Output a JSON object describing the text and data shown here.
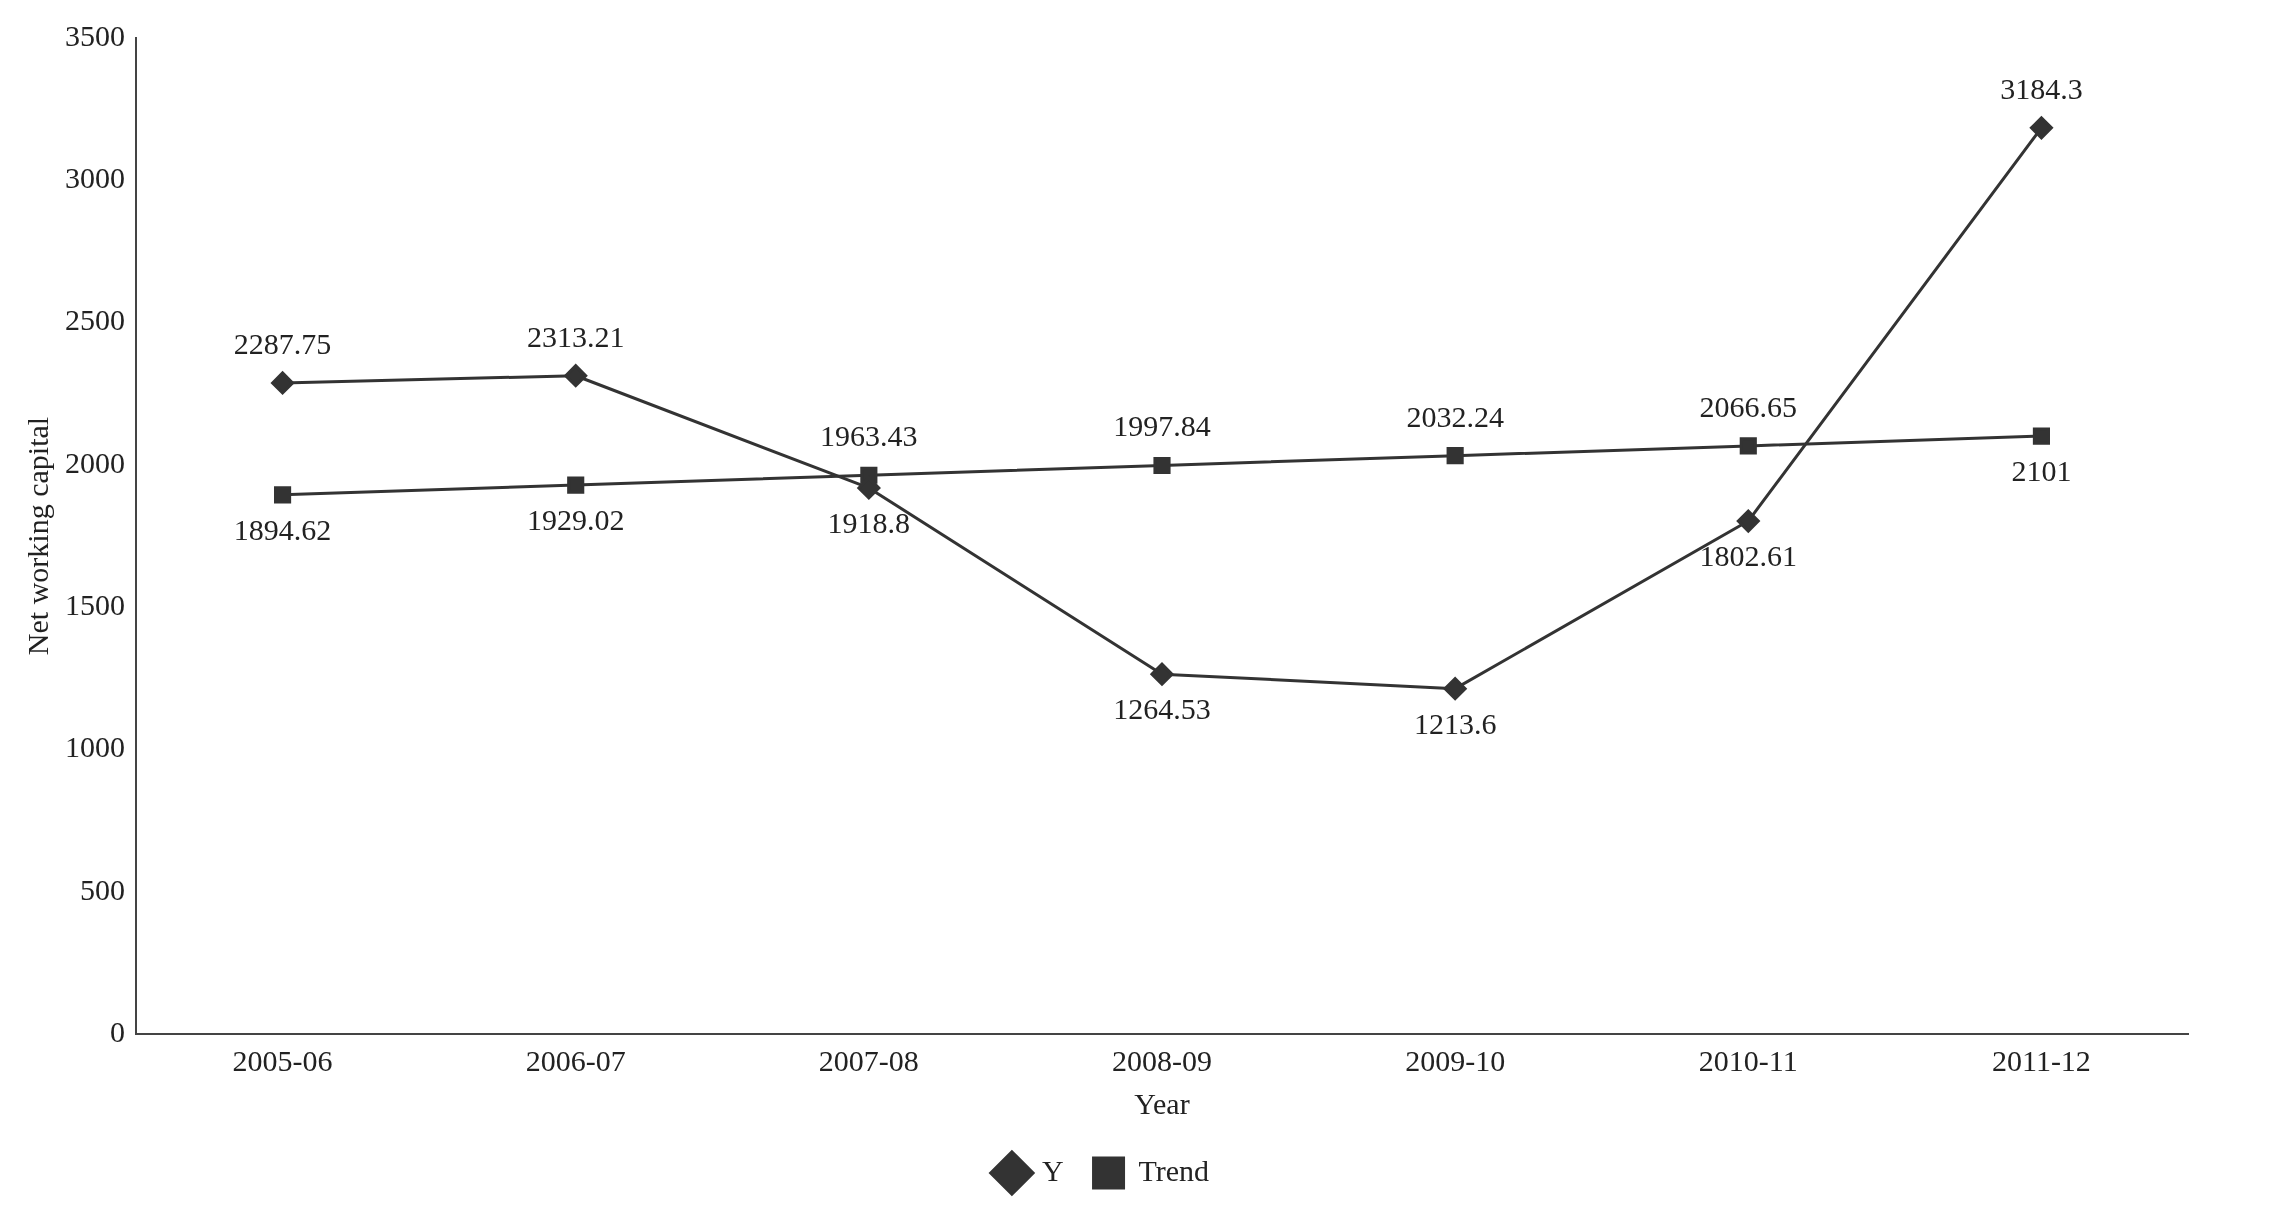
{
  "chart_data": {
    "type": "line",
    "xlabel": "Year",
    "ylabel": "Net working capital",
    "categories": [
      "2005-06",
      "2006-07",
      "2007-08",
      "2008-09",
      "2009-10",
      "2010-11",
      "2011-12"
    ],
    "series": [
      {
        "name": "Y",
        "color": "#333333",
        "marker": "diamond",
        "values": [
          2287.75,
          2313.21,
          1918.8,
          1264.53,
          1213.6,
          1802.61,
          3184.3
        ]
      },
      {
        "name": "Trend",
        "color": "#333333",
        "marker": "square",
        "values": [
          1894.62,
          1929.02,
          1963.43,
          1997.84,
          2032.24,
          2066.65,
          2101.0
        ]
      }
    ],
    "ylim": [
      0,
      3500
    ],
    "yticks": [
      0,
      500,
      1000,
      1500,
      2000,
      2500,
      3000,
      3500
    ],
    "grid": false,
    "legend": "bottom",
    "data_labels": true
  }
}
